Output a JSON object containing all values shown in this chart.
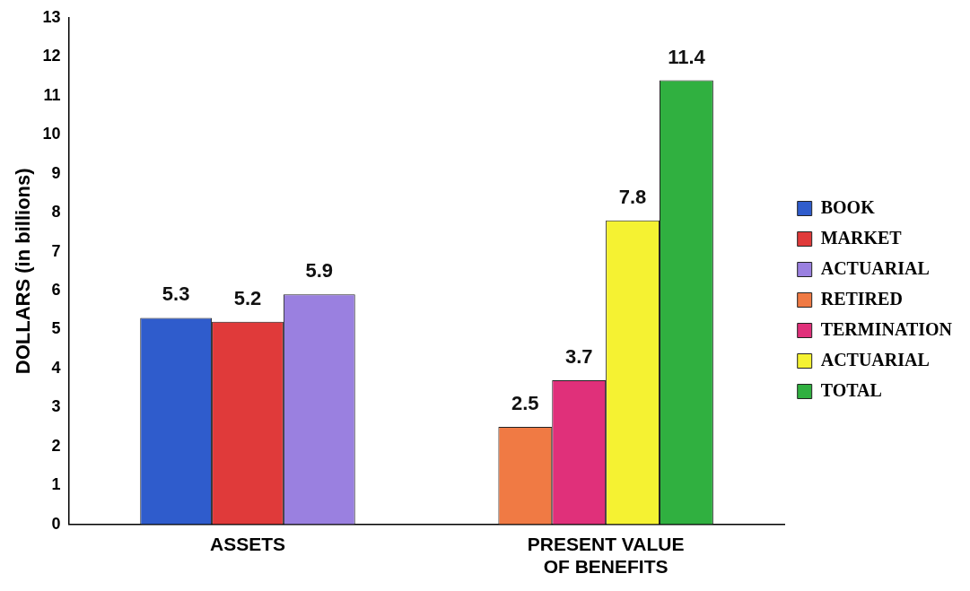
{
  "chart_data": {
    "type": "bar",
    "ylabel": "DOLLARS (in billions)",
    "categories": [
      "ASSETS",
      "PRESENT VALUE OF BENEFITS"
    ],
    "series": [
      {
        "name": "BOOK",
        "color": "#2f5ccc",
        "values": [
          5.3,
          null
        ]
      },
      {
        "name": "MARKET",
        "color": "#e03a3a",
        "values": [
          5.2,
          null
        ]
      },
      {
        "name": "ACTUARIAL",
        "color": "#9a80e0",
        "values": [
          5.9,
          null
        ]
      },
      {
        "name": "RETIRED",
        "color": "#f07a44",
        "values": [
          null,
          2.5
        ]
      },
      {
        "name": "TERMINATION",
        "color": "#e0307a",
        "values": [
          null,
          3.7
        ]
      },
      {
        "name": "ACTUARIAL",
        "color": "#f5f232",
        "values": [
          null,
          7.8
        ]
      },
      {
        "name": "TOTAL",
        "color": "#30b040",
        "values": [
          null,
          11.4
        ]
      }
    ],
    "ylim": [
      0,
      13
    ],
    "yticks": [
      0,
      1,
      2,
      3,
      4,
      5,
      6,
      7,
      8,
      9,
      10,
      11,
      12,
      13
    ],
    "grid": false,
    "legend": "right",
    "data_labels": true
  }
}
